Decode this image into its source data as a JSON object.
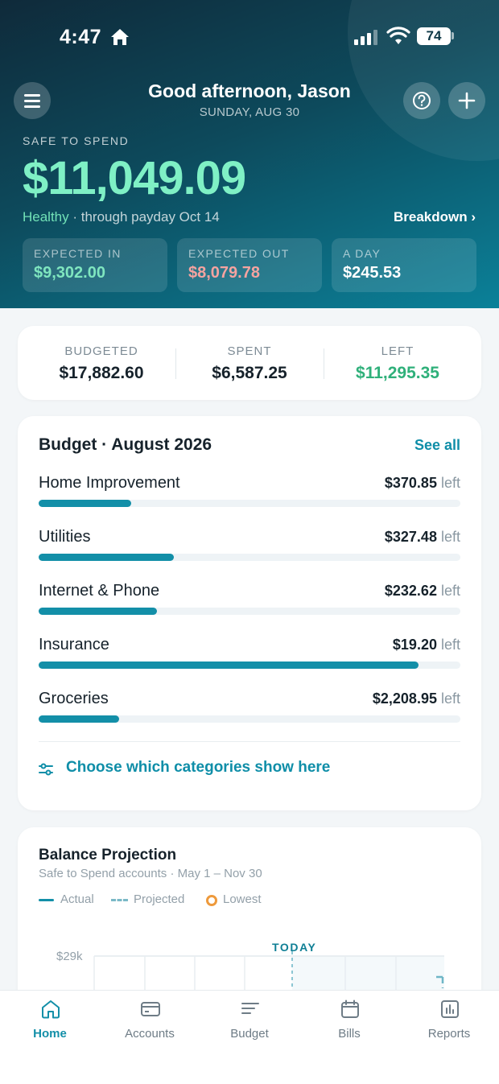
{
  "status_bar": {
    "time": "4:47",
    "battery": "74"
  },
  "header": {
    "greeting": "Good afternoon, Jason",
    "date": "SUNDAY, AUG 30",
    "safe_to_spend_label": "SAFE TO SPEND",
    "safe_to_spend_amount": "$11,049.09",
    "health": "Healthy",
    "through": "· through payday Oct 14",
    "breakdown_label": "Breakdown ›",
    "stats": [
      {
        "label": "EXPECTED IN",
        "value": "$9,302.00",
        "color": "#7fe6bf"
      },
      {
        "label": "EXPECTED OUT",
        "value": "$8,079.78",
        "color": "#f5a3a0"
      },
      {
        "label": "A DAY",
        "value": "$245.53",
        "color": "#ffffff"
      }
    ]
  },
  "summary": {
    "budgeted_label": "BUDGETED",
    "budgeted_value": "$17,882.60",
    "spent_label": "SPENT",
    "spent_value": "$6,587.25",
    "left_label": "LEFT",
    "left_value": "$11,295.35"
  },
  "budget": {
    "title": "Budget · August 2026",
    "see_all": "See all",
    "left_word": "left",
    "items": [
      {
        "name": "Home Improvement",
        "amount": "$370.85",
        "progress": 0.22
      },
      {
        "name": "Utilities",
        "amount": "$327.48",
        "progress": 0.32
      },
      {
        "name": "Internet & Phone",
        "amount": "$232.62",
        "progress": 0.28
      },
      {
        "name": "Insurance",
        "amount": "$19.20",
        "progress": 0.9
      },
      {
        "name": "Groceries",
        "amount": "$2,208.95",
        "progress": 0.19
      }
    ],
    "choose_label": "Choose which categories show here"
  },
  "projection": {
    "title": "Balance Projection",
    "subtitle": "Safe to Spend accounts · May 1 – Nov 30",
    "legend": {
      "actual": "Actual",
      "projected": "Projected",
      "lowest": "Lowest"
    },
    "today_label": "TODAY",
    "y_tick": "$29k"
  },
  "tabs": [
    {
      "label": "Home",
      "icon": "home-icon",
      "active": true
    },
    {
      "label": "Accounts",
      "icon": "card-icon",
      "active": false
    },
    {
      "label": "Budget",
      "icon": "lines-icon",
      "active": false
    },
    {
      "label": "Bills",
      "icon": "calendar-icon",
      "active": false
    },
    {
      "label": "Reports",
      "icon": "chart-icon",
      "active": false
    }
  ],
  "colors": {
    "accent": "#138fa8",
    "positive": "#2fb07a",
    "header_green": "#7ff0c5",
    "lowest": "#ee9a3c"
  }
}
